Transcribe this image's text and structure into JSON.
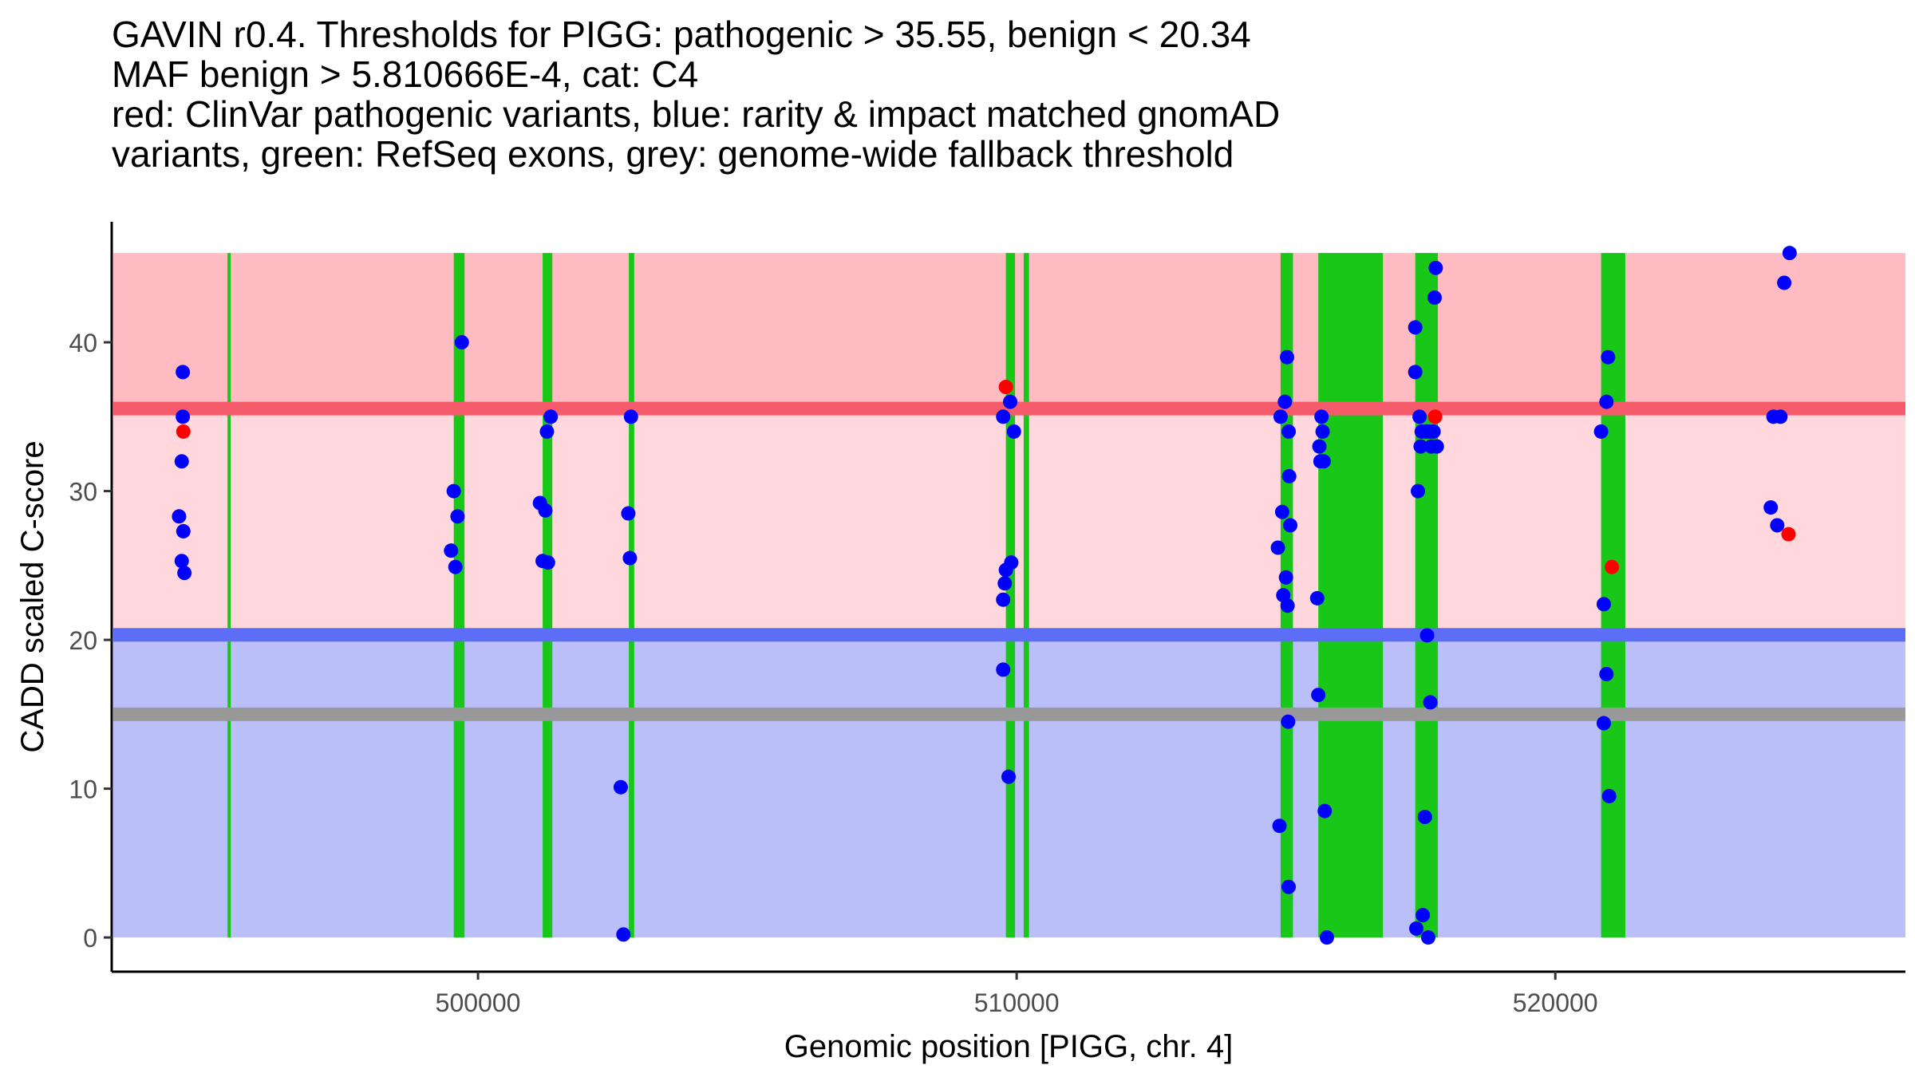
{
  "chart_data": {
    "type": "scatter",
    "title_lines": [
      "GAVIN r0.4. Thresholds for PIGG: pathogenic > 35.55, benign < 20.34",
      "MAF benign > 5.810666E-4, cat: C4",
      "red: ClinVar pathogenic variants, blue: rarity & impact matched gnomAD",
      "variants, green: RefSeq exons, grey: genome-wide fallback threshold"
    ],
    "xlabel": "Genomic position [PIGG, chr. 4]",
    "ylabel": "CADD scaled C-score",
    "xlim": [
      493200,
      526500
    ],
    "ylim": [
      -2.3,
      48.1
    ],
    "xticks": [
      500000,
      510000,
      520000
    ],
    "xtick_labels": [
      "500000",
      "510000",
      "520000"
    ],
    "yticks": [
      0,
      10,
      20,
      30,
      40
    ],
    "ytick_labels": [
      "0",
      "10",
      "20",
      "30",
      "40"
    ],
    "thresholds": {
      "pathogenic": 35.55,
      "benign": 20.34,
      "fallback": 15.0,
      "max": 46
    },
    "colors": {
      "pathogenic_band": "#ffbbc1",
      "vous_band": "#ffd7dd",
      "benign_band": "#babffa",
      "pathogenic_line": "#f55b6b",
      "benign_line": "#5b6ef5",
      "fallback_line": "#999999",
      "exon": "#19c719",
      "clinvar": "#ff0000",
      "gnomad": "#0000ff"
    },
    "exons": [
      [
        495350,
        495410
      ],
      [
        499550,
        499750
      ],
      [
        501200,
        501380
      ],
      [
        502800,
        502900
      ],
      [
        509800,
        509970
      ],
      [
        510130,
        510230
      ],
      [
        514900,
        515130
      ],
      [
        515600,
        516800
      ],
      [
        517400,
        517820
      ],
      [
        520850,
        521300
      ]
    ],
    "series": [
      {
        "name": "gnomAD",
        "points": [
          [
            494450,
            28.3
          ],
          [
            494500,
            25.3
          ],
          [
            494520,
            35.0
          ],
          [
            494520,
            38.0
          ],
          [
            494500,
            32.0
          ],
          [
            494530,
            27.3
          ],
          [
            494550,
            24.5
          ],
          [
            499550,
            30.0
          ],
          [
            499500,
            26.0
          ],
          [
            499580,
            24.9
          ],
          [
            499620,
            28.3
          ],
          [
            499700,
            40.0
          ],
          [
            501150,
            29.2
          ],
          [
            501200,
            25.3
          ],
          [
            501250,
            28.7
          ],
          [
            501300,
            25.2
          ],
          [
            501280,
            34.0
          ],
          [
            501350,
            35.0
          ],
          [
            502650,
            10.1
          ],
          [
            502700,
            0.2
          ],
          [
            502790,
            28.5
          ],
          [
            502820,
            25.5
          ],
          [
            502840,
            35.0
          ],
          [
            509750,
            35.0
          ],
          [
            509750,
            22.7
          ],
          [
            509750,
            18.0
          ],
          [
            509780,
            23.8
          ],
          [
            509800,
            24.7
          ],
          [
            509850,
            10.8
          ],
          [
            509880,
            36.0
          ],
          [
            509900,
            25.2
          ],
          [
            509950,
            34.0
          ],
          [
            514850,
            26.2
          ],
          [
            514880,
            7.5
          ],
          [
            514900,
            35.0
          ],
          [
            514930,
            28.6
          ],
          [
            514950,
            23.0
          ],
          [
            514980,
            36.0
          ],
          [
            515000,
            24.2
          ],
          [
            515020,
            39.0
          ],
          [
            515030,
            22.3
          ],
          [
            515040,
            14.5
          ],
          [
            515050,
            34.0
          ],
          [
            515060,
            31.0
          ],
          [
            515080,
            27.7
          ],
          [
            515050,
            3.4
          ],
          [
            515580,
            22.8
          ],
          [
            515600,
            16.3
          ],
          [
            515620,
            33.0
          ],
          [
            515640,
            32.0
          ],
          [
            515660,
            35.0
          ],
          [
            515680,
            34.0
          ],
          [
            515700,
            32.0
          ],
          [
            515720,
            8.5
          ],
          [
            515760,
            0.0
          ],
          [
            517400,
            41.0
          ],
          [
            517400,
            38.0
          ],
          [
            517420,
            0.6
          ],
          [
            517450,
            30.0
          ],
          [
            517480,
            35.0
          ],
          [
            517500,
            33.0
          ],
          [
            517520,
            34.0
          ],
          [
            517540,
            1.5
          ],
          [
            517580,
            8.1
          ],
          [
            517600,
            34.0
          ],
          [
            517620,
            20.3
          ],
          [
            517640,
            0.0
          ],
          [
            517660,
            34.0
          ],
          [
            517680,
            15.8
          ],
          [
            517700,
            33.0
          ],
          [
            517740,
            34.0
          ],
          [
            517760,
            43.0
          ],
          [
            517780,
            45.0
          ],
          [
            517800,
            33.0
          ],
          [
            520850,
            34.0
          ],
          [
            520900,
            14.4
          ],
          [
            520900,
            22.4
          ],
          [
            520950,
            17.7
          ],
          [
            520950,
            36.0
          ],
          [
            520980,
            39.0
          ],
          [
            521000,
            9.5
          ],
          [
            524000,
            28.9
          ],
          [
            524050,
            35.0
          ],
          [
            524120,
            27.7
          ],
          [
            524180,
            35.0
          ],
          [
            524250,
            44.0
          ],
          [
            524350,
            46.0
          ]
        ]
      },
      {
        "name": "ClinVar",
        "points": [
          [
            494530,
            34.0
          ],
          [
            509800,
            37.0
          ],
          [
            517770,
            35.0
          ],
          [
            521050,
            24.9
          ],
          [
            524330,
            27.1
          ]
        ]
      }
    ]
  }
}
